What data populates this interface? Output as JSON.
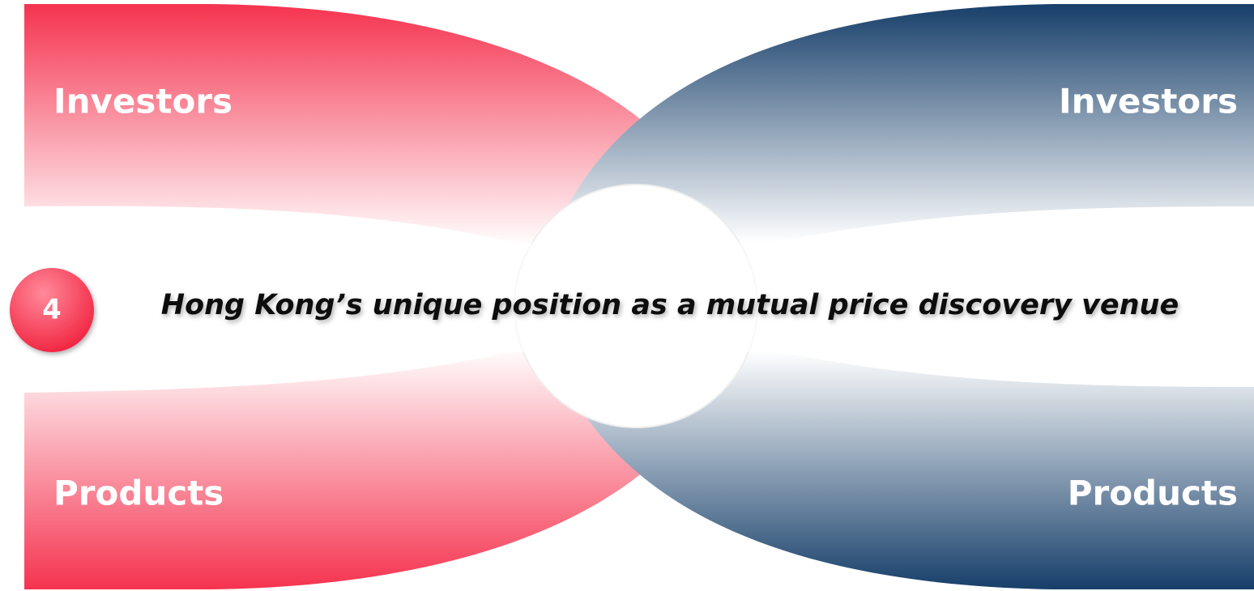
{
  "left": {
    "top": "Investors",
    "bottom": "Products"
  },
  "right": {
    "top": "Investors",
    "bottom": "Products"
  },
  "badge": "4",
  "caption": "Hong Kong’s unique position as a mutual price discovery venue"
}
